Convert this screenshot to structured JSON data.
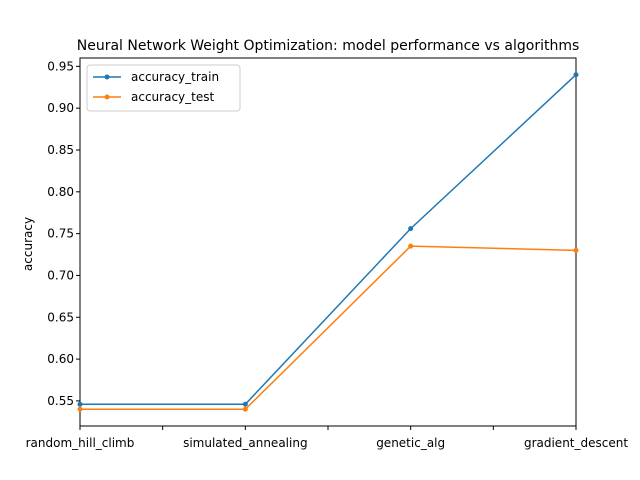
{
  "chart_data": {
    "type": "line",
    "title": "Neural Network Weight Optimization: model performance vs algorithms",
    "xlabel": "",
    "ylabel": "accuracy",
    "categories": [
      "random_hill_climb",
      "simulated_annealing",
      "genetic_alg",
      "gradient_descent"
    ],
    "series": [
      {
        "name": "accuracy_train",
        "color": "#1f77b4",
        "values": [
          0.546,
          0.546,
          0.756,
          0.94
        ]
      },
      {
        "name": "accuracy_test",
        "color": "#ff7f0e",
        "values": [
          0.54,
          0.54,
          0.735,
          0.73
        ]
      }
    ],
    "ylim": [
      0.52,
      0.96
    ],
    "yticks": [
      0.55,
      0.6,
      0.65,
      0.7,
      0.75,
      0.8,
      0.85,
      0.9,
      0.95
    ],
    "ytick_labels": [
      "0.55",
      "0.60",
      "0.65",
      "0.70",
      "0.75",
      "0.80",
      "0.85",
      "0.90",
      "0.95"
    ],
    "grid": false,
    "legend_position": "top-left"
  }
}
